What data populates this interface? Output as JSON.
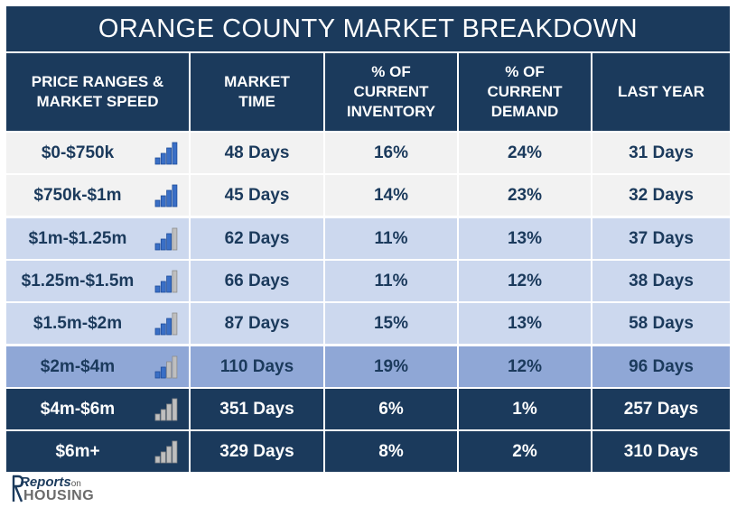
{
  "title": "ORANGE COUNTY MARKET BREAKDOWN",
  "headers": [
    "PRICE RANGES &\nMARKET SPEED",
    "MARKET\nTIME",
    "% OF\nCURRENT\nINVENTORY",
    "% OF\nCURRENT\nDEMAND",
    "LAST YEAR"
  ],
  "colors": {
    "header": "#1b3a5c",
    "row_light_gray": "#f2f2f2",
    "row_light_blue": "#ccd8ee",
    "row_mid_blue": "#8fa7d6",
    "row_dark": "#1b3a5c",
    "bar_blue": "#3a6fc6",
    "bar_gray": "#bfbfbf"
  },
  "chart_data": {
    "type": "table",
    "columns": [
      "PRICE RANGES & MARKET SPEED",
      "MARKET TIME",
      "% OF CURRENT INVENTORY",
      "% OF CURRENT DEMAND",
      "LAST YEAR"
    ],
    "rows": [
      {
        "range": "$0-$750k",
        "market_time": "48 Days",
        "inventory": "16%",
        "demand": "24%",
        "last_year": "31 Days",
        "speed_bars": 4,
        "style": "light_gray"
      },
      {
        "range": "$750k-$1m",
        "market_time": "45 Days",
        "inventory": "14%",
        "demand": "23%",
        "last_year": "32 Days",
        "speed_bars": 4,
        "style": "light_gray"
      },
      {
        "range": "$1m-$1.25m",
        "market_time": "62 Days",
        "inventory": "11%",
        "demand": "13%",
        "last_year": "37 Days",
        "speed_bars": 3,
        "style": "light_blue"
      },
      {
        "range": "$1.25m-$1.5m",
        "market_time": "66 Days",
        "inventory": "11%",
        "demand": "12%",
        "last_year": "38 Days",
        "speed_bars": 3,
        "style": "light_blue"
      },
      {
        "range": "$1.5m-$2m",
        "market_time": "87 Days",
        "inventory": "15%",
        "demand": "13%",
        "last_year": "58 Days",
        "speed_bars": 3,
        "style": "light_blue"
      },
      {
        "range": "$2m-$4m",
        "market_time": "110 Days",
        "inventory": "19%",
        "demand": "12%",
        "last_year": "96 Days",
        "speed_bars": 2,
        "style": "mid_blue"
      },
      {
        "range": "$4m-$6m",
        "market_time": "351 Days",
        "inventory": "6%",
        "demand": "1%",
        "last_year": "257 Days",
        "speed_bars": 0,
        "style": "dark"
      },
      {
        "range": "$6m+",
        "market_time": "329 Days",
        "inventory": "8%",
        "demand": "2%",
        "last_year": "310 Days",
        "speed_bars": 0,
        "style": "dark"
      }
    ]
  },
  "logo": {
    "line1": "Reports",
    "line1_small": "on",
    "line2": "HOUSING"
  }
}
